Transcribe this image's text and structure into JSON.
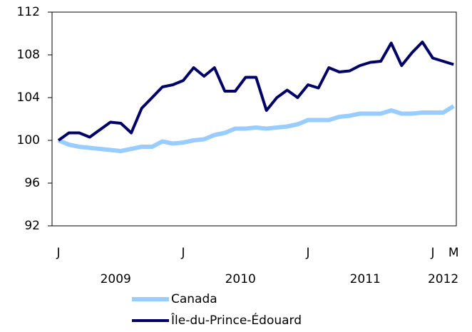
{
  "chart_data": {
    "type": "line",
    "categories": [
      "J",
      null,
      null,
      null,
      null,
      null,
      null,
      null,
      null,
      null,
      null,
      null,
      "J",
      null,
      null,
      null,
      null,
      null,
      null,
      null,
      null,
      null,
      null,
      null,
      "J",
      null,
      null,
      null,
      null,
      null,
      null,
      null,
      null,
      null,
      null,
      null,
      "J",
      null,
      "M"
    ],
    "x_groups": [
      "2009",
      "2010",
      "2011",
      "2012"
    ],
    "series": [
      {
        "name": "Canada",
        "color": "#99ccff",
        "values": [
          100,
          99.6,
          99.4,
          99.3,
          99.2,
          99.1,
          99.0,
          99.2,
          99.4,
          99.4,
          99.9,
          99.7,
          99.8,
          100.0,
          100.1,
          100.5,
          100.7,
          101.1,
          101.1,
          101.2,
          101.1,
          101.2,
          101.3,
          101.5,
          101.9,
          101.9,
          101.9,
          102.2,
          102.3,
          102.5,
          102.5,
          102.5,
          102.8,
          102.5,
          102.5,
          102.6,
          102.6,
          102.6,
          103.2
        ]
      },
      {
        "name": "Île-du-Prince-Édouard",
        "color": "#000066",
        "values": [
          100,
          100.7,
          100.7,
          100.3,
          101.0,
          101.7,
          101.6,
          100.7,
          103.0,
          104.0,
          105.0,
          105.2,
          105.6,
          106.8,
          106.0,
          106.8,
          104.6,
          104.6,
          105.9,
          105.9,
          102.8,
          104.0,
          104.7,
          104.0,
          105.2,
          104.9,
          106.8,
          106.4,
          106.5,
          107.0,
          107.3,
          107.4,
          109.1,
          107.0,
          108.2,
          109.2,
          107.7,
          107.4,
          107.1
        ]
      }
    ],
    "ylim": [
      92,
      112
    ],
    "yticks": [
      92,
      96,
      100,
      104,
      108,
      112
    ]
  }
}
